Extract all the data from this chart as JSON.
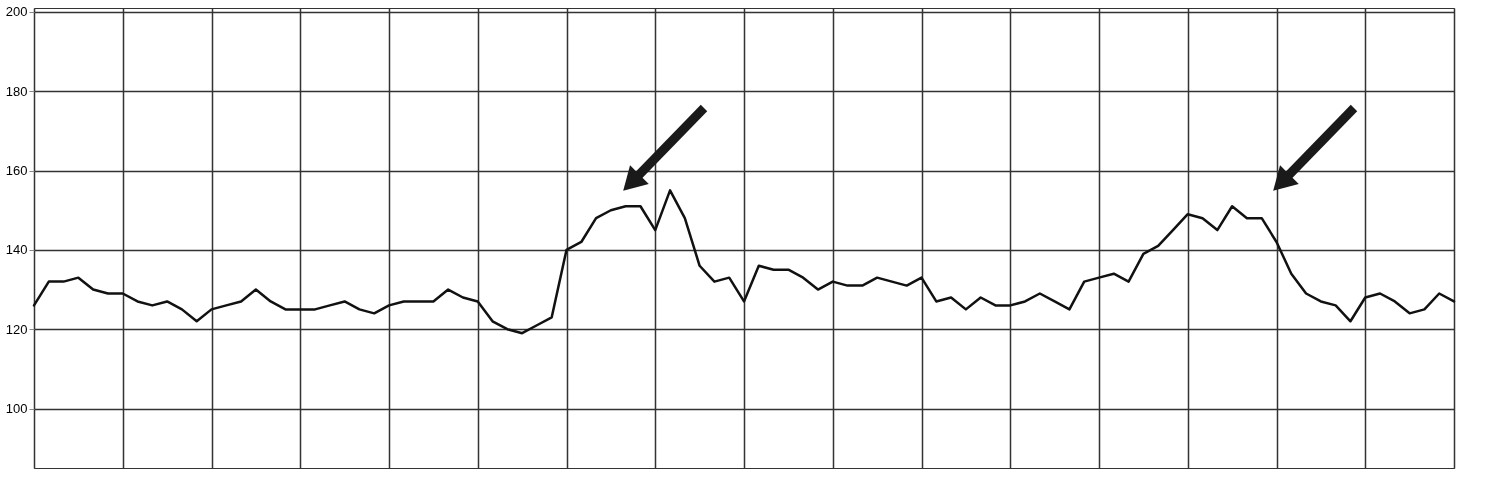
{
  "chart_data": {
    "type": "line",
    "categories": [
      null,
      null,
      null,
      null,
      null,
      null,
      null,
      null,
      null,
      null,
      null,
      null,
      null,
      null,
      null,
      null,
      null,
      null,
      null,
      null,
      null,
      null,
      null,
      null,
      null,
      null,
      null,
      null,
      null,
      null,
      null,
      null,
      null,
      null,
      null,
      null,
      null,
      null,
      null,
      null,
      null,
      null,
      null,
      null,
      null,
      null,
      null,
      null,
      null,
      null,
      null,
      null,
      null,
      null,
      null,
      null,
      null,
      null,
      null,
      null,
      null,
      null,
      null,
      null,
      null,
      null,
      null,
      null,
      null,
      null,
      null,
      null,
      null,
      null,
      null,
      null,
      null,
      null,
      null,
      null,
      null,
      null,
      null,
      null,
      null,
      null,
      null,
      null,
      null,
      null,
      null,
      null,
      null,
      null,
      null,
      null,
      null
    ],
    "series": [
      {
        "color": "#111111",
        "values": [
          126,
          132,
          132,
          133,
          130,
          129,
          129,
          127,
          126,
          127,
          125,
          122,
          125,
          126,
          127,
          130,
          127,
          125,
          125,
          125,
          126,
          127,
          125,
          124,
          126,
          127,
          127,
          127,
          130,
          128,
          127,
          122,
          120,
          119,
          121,
          123,
          140,
          142,
          148,
          150,
          151,
          151,
          145,
          155,
          148,
          136,
          132,
          133,
          127,
          136,
          135,
          135,
          133,
          130,
          132,
          131,
          131,
          133,
          132,
          131,
          133,
          127,
          128,
          125,
          128,
          126,
          126,
          127,
          129,
          127,
          125,
          132,
          133,
          134,
          132,
          139,
          141,
          145,
          149,
          148,
          145,
          151,
          148,
          148,
          142,
          134,
          129,
          127,
          126,
          122,
          128,
          129,
          127,
          124,
          125,
          129,
          127
        ]
      }
    ],
    "ylim": [
      85,
      201
    ],
    "yticks": [
      100,
      120,
      140,
      160,
      180,
      200
    ],
    "grid": true,
    "line_style": "solid",
    "marker": "none"
  }
}
